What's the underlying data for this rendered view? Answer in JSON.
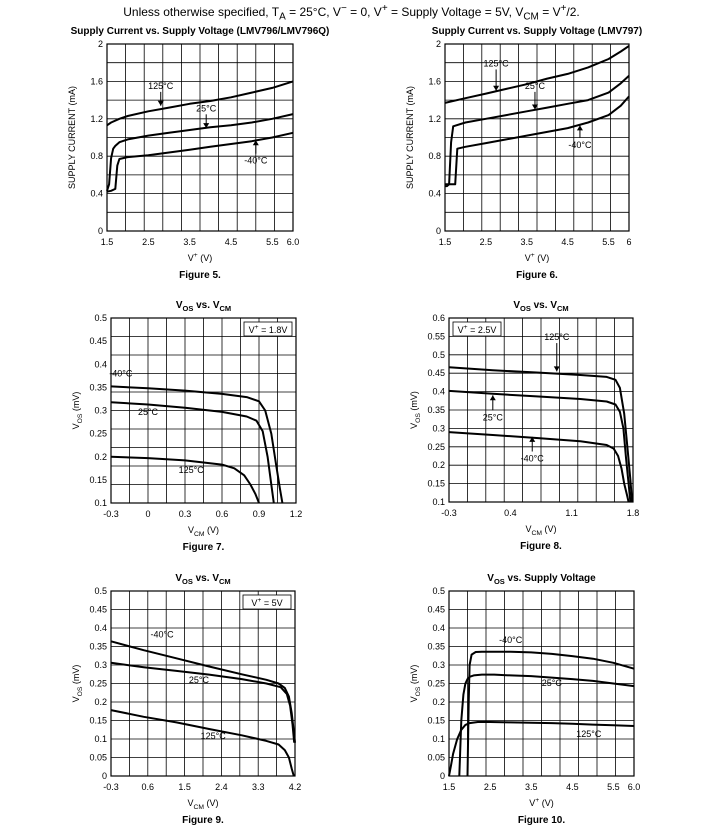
{
  "header": {
    "parts": [
      "Unless otherwise specified, T",
      "A",
      " = 25°C, V",
      "−",
      " = 0, V",
      "+",
      " = Supply Voltage = 5V, V",
      "CM",
      " = V",
      "+",
      "/2."
    ]
  },
  "chart_data": [
    {
      "type": "line",
      "title": "Supply Current vs. Supply Voltage (LMV796/LMV796Q)",
      "xlabel": "V+ (V)",
      "ylabel": "SUPPLY CURRENT (mA)",
      "caption": "Figure 5.",
      "xlim": [
        1.5,
        6.0
      ],
      "ylim": [
        0,
        2
      ],
      "xticks": [
        1.5,
        2.5,
        3.5,
        4.5,
        5.5,
        6.0
      ],
      "xtick_labels": [
        "1.5",
        "2.5",
        "3.5",
        "4.5",
        "5.5",
        "6.0"
      ],
      "yticks": [
        0,
        0.4,
        0.8,
        1.2,
        1.6,
        2
      ],
      "ytick_labels": [
        "0",
        "0.4",
        "0.8",
        "1.2",
        "1.6",
        "2"
      ],
      "grid": true,
      "series": [
        {
          "name": "125°C",
          "x": [
            1.5,
            1.6,
            1.8,
            2.0,
            2.5,
            3.0,
            3.5,
            4.0,
            4.5,
            5.0,
            5.5,
            6.0
          ],
          "y": [
            1.13,
            1.16,
            1.2,
            1.23,
            1.28,
            1.32,
            1.36,
            1.39,
            1.43,
            1.48,
            1.53,
            1.6
          ]
        },
        {
          "name": "25°C",
          "x": [
            1.5,
            1.55,
            1.6,
            1.65,
            1.7,
            1.8,
            2.0,
            2.5,
            3.0,
            3.5,
            4.0,
            4.5,
            5.0,
            5.5,
            6.0
          ],
          "y": [
            0.43,
            0.5,
            0.78,
            0.88,
            0.91,
            0.95,
            0.98,
            1.02,
            1.05,
            1.08,
            1.11,
            1.13,
            1.16,
            1.2,
            1.25
          ]
        },
        {
          "name": "-40°C",
          "x": [
            1.5,
            1.6,
            1.7,
            1.75,
            1.8,
            2.0,
            2.5,
            3.0,
            3.5,
            4.0,
            4.5,
            5.0,
            5.5,
            6.0
          ],
          "y": [
            0.42,
            0.43,
            0.45,
            0.7,
            0.77,
            0.79,
            0.81,
            0.84,
            0.87,
            0.9,
            0.93,
            0.96,
            1.0,
            1.05
          ]
        }
      ],
      "annotations": [
        {
          "text": "125°C",
          "x": 2.8,
          "y": 1.52,
          "ax": 2.8,
          "ay": 1.34
        },
        {
          "text": "25°C",
          "x": 3.9,
          "y": 1.28,
          "ax": 3.9,
          "ay": 1.1
        },
        {
          "text": "-40°C",
          "x": 5.1,
          "y": 0.72,
          "ax": 5.1,
          "ay": 0.97
        }
      ]
    },
    {
      "type": "line",
      "title": "Supply Current vs. Supply Voltage (LMV797)",
      "xlabel": "V+ (V)",
      "ylabel": "SUPPLY CURRENT (mA)",
      "caption": "Figure 6.",
      "xlim": [
        1.5,
        6.0
      ],
      "ylim": [
        0,
        2
      ],
      "xticks": [
        1.5,
        2.5,
        3.5,
        4.5,
        5.5,
        6.0
      ],
      "xtick_labels": [
        "1.5",
        "2.5",
        "3.5",
        "4.5",
        "5.5",
        "6"
      ],
      "yticks": [
        0,
        0.4,
        0.8,
        1.2,
        1.6,
        2
      ],
      "ytick_labels": [
        "0",
        "0.4",
        "0.8",
        "1.2",
        "1.6",
        "2"
      ],
      "grid": true,
      "series": [
        {
          "name": "125°C",
          "x": [
            1.5,
            2.0,
            2.5,
            3.0,
            3.5,
            4.0,
            4.5,
            5.0,
            5.5,
            5.8,
            6.0
          ],
          "y": [
            1.37,
            1.42,
            1.47,
            1.52,
            1.57,
            1.63,
            1.68,
            1.75,
            1.84,
            1.92,
            1.98
          ]
        },
        {
          "name": "25°C",
          "x": [
            1.5,
            1.55,
            1.6,
            1.65,
            1.7,
            2.0,
            2.5,
            3.0,
            3.5,
            4.0,
            4.5,
            5.0,
            5.5,
            5.8,
            6.0
          ],
          "y": [
            0.48,
            0.48,
            0.5,
            0.95,
            1.12,
            1.16,
            1.2,
            1.24,
            1.28,
            1.32,
            1.36,
            1.4,
            1.48,
            1.58,
            1.66
          ]
        },
        {
          "name": "-40°C",
          "x": [
            1.5,
            1.7,
            1.75,
            1.8,
            2.0,
            2.5,
            3.0,
            3.5,
            4.0,
            4.5,
            5.0,
            5.5,
            5.8,
            6.0
          ],
          "y": [
            0.5,
            0.5,
            0.5,
            0.88,
            0.9,
            0.94,
            0.98,
            1.02,
            1.06,
            1.1,
            1.16,
            1.24,
            1.34,
            1.44
          ]
        }
      ],
      "annotations": [
        {
          "text": "125°C",
          "x": 2.75,
          "y": 1.76,
          "ax": 2.75,
          "ay": 1.5
        },
        {
          "text": "25°C",
          "x": 3.7,
          "y": 1.52,
          "ax": 3.7,
          "ay": 1.3
        },
        {
          "text": "-40°C",
          "x": 4.8,
          "y": 0.89,
          "ax": 4.8,
          "ay": 1.13
        }
      ]
    },
    {
      "type": "line",
      "title": "VOS vs. VCM",
      "xlabel": "VCM (V)",
      "ylabel": "VOS (mV)",
      "caption": "Figure 7.",
      "condition": "V+ = 1.8V",
      "xlim": [
        -0.3,
        1.2
      ],
      "ylim": [
        0.1,
        0.5
      ],
      "xticks": [
        -0.3,
        0,
        0.3,
        0.6,
        0.9,
        1.2
      ],
      "xtick_labels": [
        "-0.3",
        "0",
        "0.3",
        "0.6",
        "0.9",
        "1.2"
      ],
      "yticks": [
        0.1,
        0.15,
        0.2,
        0.25,
        0.3,
        0.35,
        0.4,
        0.45,
        0.5
      ],
      "ytick_labels": [
        "0.1",
        "0.15",
        "0.2",
        "0.25",
        "0.3",
        "0.35",
        "0.4",
        "0.45",
        "0.5"
      ],
      "grid": true,
      "series": [
        {
          "name": "-40°C",
          "x": [
            -0.3,
            0.0,
            0.3,
            0.6,
            0.8,
            0.9,
            0.95,
            1.0,
            1.04,
            1.07,
            1.09
          ],
          "y": [
            0.352,
            0.348,
            0.343,
            0.336,
            0.329,
            0.32,
            0.3,
            0.25,
            0.18,
            0.13,
            0.1
          ]
        },
        {
          "name": "25°C",
          "x": [
            -0.3,
            0.0,
            0.3,
            0.6,
            0.8,
            0.88,
            0.93,
            0.97,
            1.0,
            1.02
          ],
          "y": [
            0.318,
            0.313,
            0.306,
            0.297,
            0.287,
            0.278,
            0.255,
            0.2,
            0.14,
            0.1
          ]
        },
        {
          "name": "125°C",
          "x": [
            -0.3,
            0.0,
            0.3,
            0.6,
            0.7,
            0.78,
            0.83,
            0.87,
            0.9
          ],
          "y": [
            0.2,
            0.197,
            0.192,
            0.183,
            0.175,
            0.16,
            0.14,
            0.12,
            0.1
          ]
        }
      ],
      "annotations": [
        {
          "text": "-40°C",
          "x": -0.22,
          "y": 0.373
        },
        {
          "text": "25°C",
          "x": 0.0,
          "y": 0.29
        },
        {
          "text": "125°C",
          "x": 0.35,
          "y": 0.165
        }
      ]
    },
    {
      "type": "line",
      "title": "VOS vs. VCM",
      "xlabel": "VCM (V)",
      "ylabel": "VOS (mV)",
      "caption": "Figure 8.",
      "condition": "V+ = 2.5V",
      "xlim": [
        -0.3,
        1.8
      ],
      "ylim": [
        0.1,
        0.6
      ],
      "xticks": [
        -0.3,
        0.4,
        1.1,
        1.8
      ],
      "xtick_labels": [
        "-0.3",
        "0.4",
        "1.1",
        "1.8"
      ],
      "yticks": [
        0.1,
        0.15,
        0.2,
        0.25,
        0.3,
        0.35,
        0.4,
        0.45,
        0.5,
        0.55,
        0.6
      ],
      "ytick_labels": [
        "0.1",
        "0.15",
        "0.2",
        "0.25",
        "0.3",
        "0.35",
        "0.4",
        "0.45",
        "0.5",
        "0.55",
        "0.6"
      ],
      "grid": true,
      "series": [
        {
          "name": "125°C",
          "x": [
            -0.3,
            0.2,
            0.7,
            1.2,
            1.5,
            1.6,
            1.65,
            1.7,
            1.74,
            1.77,
            1.79
          ],
          "y": [
            0.466,
            0.458,
            0.452,
            0.445,
            0.44,
            0.432,
            0.41,
            0.34,
            0.24,
            0.16,
            0.1
          ]
        },
        {
          "name": "25°C",
          "x": [
            -0.3,
            0.2,
            0.7,
            1.2,
            1.5,
            1.6,
            1.65,
            1.69,
            1.72,
            1.75,
            1.77
          ],
          "y": [
            0.402,
            0.394,
            0.387,
            0.38,
            0.373,
            0.365,
            0.345,
            0.3,
            0.22,
            0.15,
            0.1
          ]
        },
        {
          "name": "-40°C",
          "x": [
            -0.3,
            0.2,
            0.7,
            1.2,
            1.5,
            1.58,
            1.63,
            1.67,
            1.7,
            1.73,
            1.75
          ],
          "y": [
            0.29,
            0.282,
            0.274,
            0.265,
            0.255,
            0.245,
            0.225,
            0.19,
            0.15,
            0.12,
            0.1
          ]
        }
      ],
      "annotations": [
        {
          "text": "125°C",
          "x": 0.93,
          "y": 0.54,
          "ax": 0.93,
          "ay": 0.455
        },
        {
          "text": "25°C",
          "x": 0.2,
          "y": 0.322,
          "ax": 0.2,
          "ay": 0.39
        },
        {
          "text": "-40°C",
          "x": 0.65,
          "y": 0.21,
          "ax": 0.65,
          "ay": 0.277
        }
      ]
    },
    {
      "type": "line",
      "title": "VOS vs. VCM",
      "xlabel": "VCM (V)",
      "ylabel": "VOS (mV)",
      "caption": "Figure 9.",
      "condition": "V+ = 5V",
      "xlim": [
        -0.3,
        4.2
      ],
      "ylim": [
        0,
        0.5
      ],
      "xticks": [
        -0.3,
        0.6,
        1.5,
        2.4,
        3.3,
        4.2
      ],
      "xtick_labels": [
        "-0.3",
        "0.6",
        "1.5",
        "2.4",
        "3.3",
        "4.2"
      ],
      "yticks": [
        0,
        0.05,
        0.1,
        0.15,
        0.2,
        0.25,
        0.3,
        0.35,
        0.4,
        0.45,
        0.5
      ],
      "ytick_labels": [
        "0",
        "0.05",
        "0.1",
        "0.15",
        "0.2",
        "0.25",
        "0.3",
        "0.35",
        "0.4",
        "0.45",
        "0.5"
      ],
      "grid": true,
      "series": [
        {
          "name": "-40°C",
          "x": [
            -0.3,
            0.5,
            1.3,
            2.1,
            2.9,
            3.5,
            3.8,
            3.95,
            4.05,
            4.12,
            4.17,
            4.2
          ],
          "y": [
            0.364,
            0.34,
            0.318,
            0.296,
            0.275,
            0.26,
            0.25,
            0.238,
            0.215,
            0.17,
            0.12,
            0.09
          ]
        },
        {
          "name": "25°C",
          "x": [
            -0.3,
            0.5,
            1.3,
            2.1,
            2.9,
            3.5,
            3.85,
            4.0,
            4.08,
            4.14,
            4.18
          ],
          "y": [
            0.306,
            0.294,
            0.284,
            0.274,
            0.262,
            0.25,
            0.24,
            0.222,
            0.19,
            0.14,
            0.09
          ]
        },
        {
          "name": "125°C",
          "x": [
            -0.3,
            0.5,
            1.3,
            2.1,
            2.9,
            3.5,
            3.8,
            3.95,
            4.05,
            4.12,
            4.17
          ],
          "y": [
            0.178,
            0.16,
            0.145,
            0.127,
            0.11,
            0.095,
            0.085,
            0.07,
            0.05,
            0.02,
            0.0
          ]
        }
      ],
      "annotations": [
        {
          "text": "-40°C",
          "x": 0.95,
          "y": 0.375
        },
        {
          "text": "25°C",
          "x": 1.85,
          "y": 0.252
        },
        {
          "text": "125°C",
          "x": 2.2,
          "y": 0.1
        }
      ]
    },
    {
      "type": "line",
      "title": "VOS vs. Supply Voltage",
      "xlabel": "V+ (V)",
      "ylabel": "VOS (mV)",
      "caption": "Figure 10.",
      "xlim": [
        1.5,
        6.0
      ],
      "ylim": [
        0,
        0.5
      ],
      "xticks": [
        1.5,
        2.5,
        3.5,
        4.5,
        5.5,
        6.0
      ],
      "xtick_labels": [
        "1.5",
        "2.5",
        "3.5",
        "4.5",
        "5.5",
        "6.0"
      ],
      "yticks": [
        0,
        0.05,
        0.1,
        0.15,
        0.2,
        0.25,
        0.3,
        0.35,
        0.4,
        0.45,
        0.5
      ],
      "ytick_labels": [
        "0",
        "0.05",
        "0.1",
        "0.15",
        "0.2",
        "0.25",
        "0.3",
        "0.35",
        "0.4",
        "0.45",
        "0.5"
      ],
      "grid": true,
      "series": [
        {
          "name": "-40°C",
          "x": [
            1.95,
            1.98,
            2.0,
            2.05,
            2.15,
            2.3,
            2.5,
            3.0,
            3.5,
            4.0,
            4.5,
            5.0,
            5.5,
            6.0
          ],
          "y": [
            0.0,
            0.2,
            0.3,
            0.328,
            0.335,
            0.336,
            0.336,
            0.336,
            0.334,
            0.33,
            0.324,
            0.317,
            0.306,
            0.29
          ]
        },
        {
          "name": "25°C",
          "x": [
            1.75,
            1.8,
            1.85,
            1.9,
            1.95,
            2.0,
            2.1,
            2.3,
            2.6,
            3.0,
            3.5,
            4.0,
            4.5,
            5.0,
            5.5,
            6.0
          ],
          "y": [
            0.0,
            0.15,
            0.22,
            0.25,
            0.262,
            0.268,
            0.272,
            0.274,
            0.274,
            0.272,
            0.27,
            0.266,
            0.262,
            0.257,
            0.25,
            0.243
          ]
        },
        {
          "name": "125°C",
          "x": [
            1.5,
            1.55,
            1.6,
            1.7,
            1.8,
            1.9,
            2.0,
            2.2,
            2.5,
            3.0,
            3.5,
            4.0,
            4.5,
            5.0,
            5.5,
            6.0
          ],
          "y": [
            0.0,
            0.03,
            0.06,
            0.1,
            0.125,
            0.138,
            0.143,
            0.146,
            0.146,
            0.145,
            0.144,
            0.143,
            0.141,
            0.139,
            0.137,
            0.135
          ]
        }
      ],
      "annotations": [
        {
          "text": "-40°C",
          "x": 3.0,
          "y": 0.36
        },
        {
          "text": "25°C",
          "x": 4.0,
          "y": 0.243
        },
        {
          "text": "125°C",
          "x": 4.9,
          "y": 0.105
        }
      ]
    }
  ]
}
